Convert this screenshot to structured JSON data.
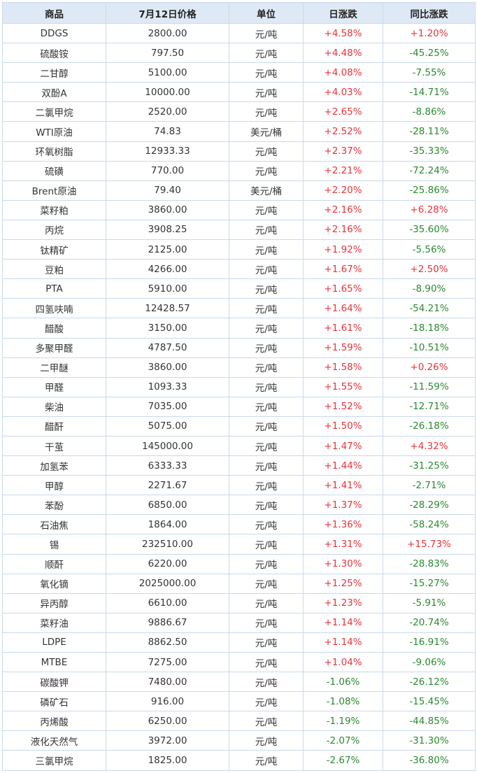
{
  "headers": [
    "商品",
    "7月12日价格",
    "单位",
    "日涨跌",
    "同比涨跌"
  ],
  "colors": {
    "up": "#e8333a",
    "down": "#2a8a2f",
    "header_bg": "#dfe9f5",
    "border": "#c8d9ec"
  },
  "rows": [
    {
      "name": "DDGS",
      "price": "2800.00",
      "unit": "元/吨",
      "day": "+4.58%",
      "yoy": "+1.20%"
    },
    {
      "name": "硫酸铵",
      "price": "797.50",
      "unit": "元/吨",
      "day": "+4.48%",
      "yoy": "-45.25%"
    },
    {
      "name": "二甘醇",
      "price": "5100.00",
      "unit": "元/吨",
      "day": "+4.08%",
      "yoy": "-7.55%"
    },
    {
      "name": "双酚A",
      "price": "10000.00",
      "unit": "元/吨",
      "day": "+4.03%",
      "yoy": "-14.71%"
    },
    {
      "name": "二氯甲烷",
      "price": "2520.00",
      "unit": "元/吨",
      "day": "+2.65%",
      "yoy": "-8.86%"
    },
    {
      "name": "WTI原油",
      "price": "74.83",
      "unit": "美元/桶",
      "day": "+2.52%",
      "yoy": "-28.11%"
    },
    {
      "name": "环氧树脂",
      "price": "12933.33",
      "unit": "元/吨",
      "day": "+2.37%",
      "yoy": "-35.33%"
    },
    {
      "name": "硫磺",
      "price": "770.00",
      "unit": "元/吨",
      "day": "+2.21%",
      "yoy": "-72.24%"
    },
    {
      "name": "Brent原油",
      "price": "79.40",
      "unit": "美元/桶",
      "day": "+2.20%",
      "yoy": "-25.86%"
    },
    {
      "name": "菜籽粕",
      "price": "3860.00",
      "unit": "元/吨",
      "day": "+2.16%",
      "yoy": "+6.28%"
    },
    {
      "name": "丙烷",
      "price": "3908.25",
      "unit": "元/吨",
      "day": "+2.16%",
      "yoy": "-35.60%"
    },
    {
      "name": "钛精矿",
      "price": "2125.00",
      "unit": "元/吨",
      "day": "+1.92%",
      "yoy": "-5.56%"
    },
    {
      "name": "豆粕",
      "price": "4266.00",
      "unit": "元/吨",
      "day": "+1.67%",
      "yoy": "+2.50%"
    },
    {
      "name": "PTA",
      "price": "5910.00",
      "unit": "元/吨",
      "day": "+1.65%",
      "yoy": "-8.90%"
    },
    {
      "name": "四氢呋喃",
      "price": "12428.57",
      "unit": "元/吨",
      "day": "+1.64%",
      "yoy": "-54.21%"
    },
    {
      "name": "醋酸",
      "price": "3150.00",
      "unit": "元/吨",
      "day": "+1.61%",
      "yoy": "-18.18%"
    },
    {
      "name": "多聚甲醛",
      "price": "4787.50",
      "unit": "元/吨",
      "day": "+1.59%",
      "yoy": "-10.51%"
    },
    {
      "name": "二甲醚",
      "price": "3860.00",
      "unit": "元/吨",
      "day": "+1.58%",
      "yoy": "+0.26%"
    },
    {
      "name": "甲醛",
      "price": "1093.33",
      "unit": "元/吨",
      "day": "+1.55%",
      "yoy": "-11.59%"
    },
    {
      "name": "柴油",
      "price": "7035.00",
      "unit": "元/吨",
      "day": "+1.52%",
      "yoy": "-12.71%"
    },
    {
      "name": "醋酐",
      "price": "5075.00",
      "unit": "元/吨",
      "day": "+1.50%",
      "yoy": "-26.18%"
    },
    {
      "name": "干茧",
      "price": "145000.00",
      "unit": "元/吨",
      "day": "+1.47%",
      "yoy": "+4.32%"
    },
    {
      "name": "加氢苯",
      "price": "6333.33",
      "unit": "元/吨",
      "day": "+1.44%",
      "yoy": "-31.25%"
    },
    {
      "name": "甲醇",
      "price": "2271.67",
      "unit": "元/吨",
      "day": "+1.41%",
      "yoy": "-2.71%"
    },
    {
      "name": "苯酚",
      "price": "6850.00",
      "unit": "元/吨",
      "day": "+1.37%",
      "yoy": "-28.29%"
    },
    {
      "name": "石油焦",
      "price": "1864.00",
      "unit": "元/吨",
      "day": "+1.36%",
      "yoy": "-58.24%"
    },
    {
      "name": "锡",
      "price": "232510.00",
      "unit": "元/吨",
      "day": "+1.31%",
      "yoy": "+15.73%"
    },
    {
      "name": "顺酐",
      "price": "6220.00",
      "unit": "元/吨",
      "day": "+1.30%",
      "yoy": "-28.83%"
    },
    {
      "name": "氧化镝",
      "price": "2025000.00",
      "unit": "元/吨",
      "day": "+1.25%",
      "yoy": "-15.27%"
    },
    {
      "name": "异丙醇",
      "price": "6610.00",
      "unit": "元/吨",
      "day": "+1.23%",
      "yoy": "-5.91%"
    },
    {
      "name": "菜籽油",
      "price": "9886.67",
      "unit": "元/吨",
      "day": "+1.14%",
      "yoy": "-20.74%"
    },
    {
      "name": "LDPE",
      "price": "8862.50",
      "unit": "元/吨",
      "day": "+1.14%",
      "yoy": "-16.91%"
    },
    {
      "name": "MTBE",
      "price": "7275.00",
      "unit": "元/吨",
      "day": "+1.04%",
      "yoy": "-9.06%"
    },
    {
      "name": "碳酸钾",
      "price": "7480.00",
      "unit": "元/吨",
      "day": "-1.06%",
      "yoy": "-26.12%"
    },
    {
      "name": "磷矿石",
      "price": "916.00",
      "unit": "元/吨",
      "day": "-1.08%",
      "yoy": "-15.45%"
    },
    {
      "name": "丙烯酸",
      "price": "6250.00",
      "unit": "元/吨",
      "day": "-1.19%",
      "yoy": "-44.85%"
    },
    {
      "name": "液化天然气",
      "price": "3972.00",
      "unit": "元/吨",
      "day": "-2.07%",
      "yoy": "-31.30%"
    },
    {
      "name": "三氯甲烷",
      "price": "1825.00",
      "unit": "元/吨",
      "day": "-2.67%",
      "yoy": "-36.80%"
    }
  ]
}
